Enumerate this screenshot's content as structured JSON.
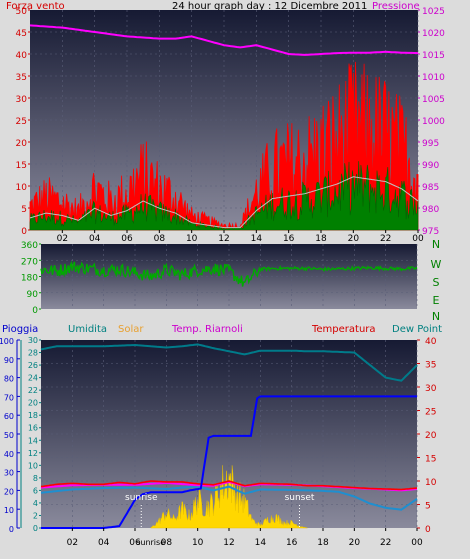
{
  "header": {
    "left_label": "Forza vento",
    "title": "24 hour graph day : 12 Dicembre 2011",
    "right_label": "Pressione"
  },
  "colors": {
    "wind": "#ff0000",
    "gust": "#ff0000",
    "avg_wind": "#008000",
    "gust_avg": "#c0c0c0",
    "pressure": "#ff00ff",
    "direction": "#00aa00",
    "rain": "#0000ff",
    "humidity": "#007b8a",
    "solar": "#ffd700",
    "heat_index": "#ff00ff",
    "temperature": "#ff0000",
    "dew_point": "#1e8fd0",
    "panel_top": "#161a33",
    "panel_bottom": "#8a8a9c",
    "label_red": "#d40000",
    "label_magenta": "#cc00cc",
    "label_green": "#009900",
    "label_teal": "#008080"
  },
  "x_ticks": [
    "02",
    "04",
    "06",
    "08",
    "10",
    "12",
    "14",
    "16",
    "18",
    "20",
    "22",
    "00"
  ],
  "wind_panel": {
    "y_left_ticks": [
      "0",
      "5",
      "10",
      "15",
      "20",
      "25",
      "30",
      "35",
      "40",
      "45",
      "50"
    ],
    "y_right_ticks": [
      "975",
      "980",
      "985",
      "990",
      "995",
      "1000",
      "1005",
      "1010",
      "1015",
      "1020",
      "1025"
    ]
  },
  "dir_panel": {
    "y_ticks": [
      "0",
      "90",
      "180",
      "270",
      "360"
    ],
    "compass": [
      "N",
      "W",
      "S",
      "E",
      "N"
    ]
  },
  "bottom_panel": {
    "labels": {
      "rain": "Pioggia",
      "humidity": "Umidita",
      "solar": "Solar",
      "heat": "Temp. Riarnoli",
      "temp": "Temperatura",
      "dew": "Dew Point"
    },
    "y_rain_ticks": [
      "0",
      "10",
      "20",
      "30",
      "40",
      "50",
      "60",
      "70",
      "80",
      "90",
      "100"
    ],
    "y_hum_ticks": [
      "0",
      "2",
      "4",
      "6",
      "8",
      "10",
      "12",
      "14",
      "16",
      "18",
      "20",
      "22",
      "24",
      "26",
      "28",
      "30"
    ],
    "y_temp_ticks": [
      "0",
      "5",
      "10",
      "15",
      "20",
      "25",
      "30",
      "35",
      "40"
    ],
    "sunrise": "sunrise",
    "sunset": "sunset",
    "x_sunrise_label": "sunrise"
  },
  "chart_data": [
    {
      "type": "line",
      "title": "24 hour graph day : 12 Dicembre 2011",
      "x_unit": "hour",
      "xlim": [
        0,
        24
      ],
      "ylim_left": [
        0,
        50
      ],
      "ylim_right": [
        975,
        1025
      ],
      "series": [
        {
          "name": "Pressione",
          "axis": "right",
          "x": [
            0,
            2,
            4,
            6,
            8,
            9,
            10,
            11,
            12,
            13,
            14,
            15,
            16,
            17,
            18,
            19,
            20,
            21,
            22,
            23,
            24
          ],
          "values": [
            1021.5,
            1021,
            1020,
            1019,
            1018.5,
            1018.5,
            1019,
            1018,
            1017,
            1016.5,
            1017,
            1016,
            1015,
            1014.8,
            1015,
            1015.2,
            1015.3,
            1015.3,
            1015.5,
            1015.3,
            1015.2
          ]
        },
        {
          "name": "Forza vento",
          "axis": "left",
          "x": [
            0,
            1,
            2,
            3,
            4,
            5,
            6,
            7,
            8,
            9,
            10,
            11,
            12,
            13,
            14,
            15,
            16,
            17,
            18,
            19,
            20,
            21,
            22,
            23,
            24
          ],
          "values": [
            5,
            7,
            6,
            4,
            9,
            6,
            8,
            12,
            9,
            7,
            3,
            2,
            1,
            1,
            8,
            13,
            14,
            15,
            17,
            19,
            22,
            21,
            20,
            17,
            12
          ]
        }
      ]
    },
    {
      "type": "line",
      "ylim": [
        0,
        360
      ],
      "x_unit": "hour",
      "xlim": [
        0,
        24
      ],
      "series": [
        {
          "name": "direction",
          "x": [
            0,
            1,
            2,
            3,
            4,
            5,
            6,
            7,
            8,
            9,
            10,
            11,
            12,
            13,
            14,
            15,
            16,
            17,
            18,
            19,
            20,
            21,
            22,
            23,
            24
          ],
          "values": [
            220,
            210,
            235,
            225,
            215,
            220,
            200,
            180,
            215,
            190,
            215,
            225,
            210,
            140,
            220,
            225,
            225,
            225,
            220,
            222,
            225,
            228,
            225,
            222,
            225
          ]
        }
      ]
    },
    {
      "type": "line",
      "x_unit": "hour",
      "xlim": [
        0,
        24
      ],
      "ylim_rain": [
        0,
        100
      ],
      "ylim_humidity": [
        0,
        30
      ],
      "ylim_temperature": [
        0,
        40
      ],
      "series": [
        {
          "name": "Umidita",
          "axis": "humidity",
          "x": [
            0,
            1,
            2,
            4,
            6,
            8,
            9,
            10,
            11,
            12,
            13,
            14,
            15,
            16,
            17,
            18,
            19,
            20,
            21,
            22,
            23,
            24
          ],
          "values": [
            28.5,
            29,
            29,
            29,
            29.2,
            28.8,
            29,
            29.3,
            28.7,
            28.2,
            27.7,
            28.3,
            28.3,
            28.3,
            28.2,
            28.2,
            28.1,
            28,
            26,
            24,
            23.5,
            26
          ]
        },
        {
          "name": "Pioggia",
          "axis": "rain",
          "x": [
            0,
            2,
            4,
            5,
            5.5,
            6,
            6.5,
            7,
            9,
            9.5,
            10.2,
            10.7,
            11,
            13,
            13.4,
            13.8,
            14,
            16,
            18,
            20,
            22,
            23.6,
            24
          ],
          "values": [
            0,
            0,
            0,
            1,
            8,
            15,
            18,
            19,
            19,
            20,
            21,
            48,
            49,
            49,
            49,
            69,
            70,
            70,
            70,
            70,
            70,
            70,
            70
          ]
        },
        {
          "name": "Temperatura",
          "axis": "temp",
          "x": [
            0,
            1,
            2,
            3,
            4,
            5,
            6,
            7,
            8,
            9,
            10,
            11,
            12,
            13,
            14,
            15,
            16,
            17,
            18,
            19,
            20,
            21,
            22,
            23,
            24
          ],
          "values": [
            8.8,
            9.3,
            9.5,
            9.3,
            9.3,
            9.7,
            9.4,
            10.0,
            9.8,
            9.8,
            9.4,
            9.2,
            10.0,
            9.0,
            9.5,
            9.4,
            9.3,
            9.0,
            9.0,
            8.8,
            8.6,
            8.4,
            8.3,
            8.2,
            8.5
          ]
        },
        {
          "name": "Temp. Riarnoli",
          "axis": "temp",
          "x": [
            0,
            2,
            4,
            6,
            8,
            10,
            11,
            12,
            13,
            14,
            16,
            18,
            20,
            22,
            23,
            24
          ],
          "values": [
            8.6,
            9.1,
            9.2,
            9.2,
            9.6,
            9.1,
            9.0,
            9.8,
            8.9,
            9.3,
            9.2,
            8.9,
            8.5,
            8.2,
            8.0,
            8.3
          ]
        },
        {
          "name": "Dew Point",
          "axis": "temp",
          "x": [
            0,
            2,
            4,
            6,
            8,
            9,
            10,
            11,
            12,
            13,
            14,
            16,
            18,
            19,
            20,
            21,
            22,
            23,
            24
          ],
          "values": [
            7.5,
            8.2,
            8.5,
            8.6,
            8.3,
            8.6,
            8.8,
            8.0,
            8.8,
            7.3,
            8.2,
            8.1,
            7.9,
            7.7,
            6.7,
            5.2,
            4.3,
            3.9,
            6.2
          ]
        },
        {
          "name": "Solar",
          "axis": "humidity",
          "x": [
            7,
            7.5,
            8,
            8.5,
            9,
            9.5,
            10,
            10.5,
            11,
            11.5,
            12,
            12.5,
            13,
            13.5,
            14,
            14.5,
            15,
            15.5,
            16,
            16.5,
            17
          ],
          "values": [
            0,
            1.2,
            2.8,
            1.6,
            3.5,
            2.2,
            5.2,
            3.8,
            4.8,
            7.8,
            9.5,
            6.2,
            5.0,
            1.4,
            0.5,
            1.7,
            2.0,
            1.0,
            1.0,
            0.4,
            0
          ]
        }
      ]
    }
  ]
}
